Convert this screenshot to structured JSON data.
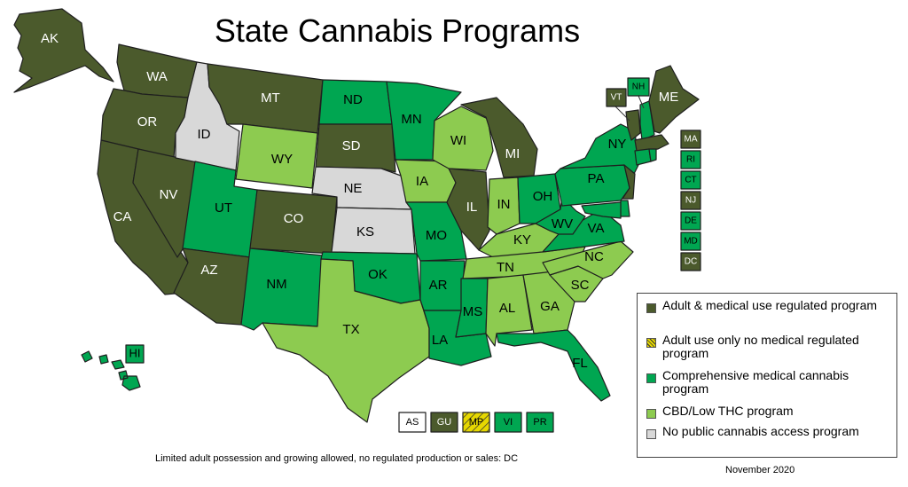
{
  "title": "State Cannabis Programs",
  "colors": {
    "adult_medical": "#4b5a2c",
    "adult_only": "#e6d800",
    "comprehensive_medical": "#00a651",
    "cbd_low_thc": "#8dcb50",
    "no_program": "#d8d8d8"
  },
  "legend": [
    {
      "category": "adult_medical",
      "label": "Adult & medical use regulated program"
    },
    {
      "category": "adult_only",
      "label": "Adult use only no medical regulated program"
    },
    {
      "category": "comprehensive_medical",
      "label": "Comprehensive medical cannabis program"
    },
    {
      "category": "cbd_low_thc",
      "label": "CBD/Low THC program"
    },
    {
      "category": "no_program",
      "label": "No public cannabis access program"
    }
  ],
  "states": {
    "AK": "adult_medical",
    "WA": "adult_medical",
    "OR": "adult_medical",
    "CA": "adult_medical",
    "NV": "adult_medical",
    "ID": "no_program",
    "MT": "adult_medical",
    "WY": "cbd_low_thc",
    "UT": "comprehensive_medical",
    "AZ": "adult_medical",
    "CO": "adult_medical",
    "NM": "comprehensive_medical",
    "ND": "comprehensive_medical",
    "SD": "adult_medical",
    "NE": "no_program",
    "KS": "no_program",
    "OK": "comprehensive_medical",
    "TX": "cbd_low_thc",
    "MN": "comprehensive_medical",
    "IA": "cbd_low_thc",
    "MO": "comprehensive_medical",
    "AR": "comprehensive_medical",
    "LA": "comprehensive_medical",
    "WI": "cbd_low_thc",
    "IL": "adult_medical",
    "MI": "adult_medical",
    "IN": "cbd_low_thc",
    "OH": "comprehensive_medical",
    "KY": "cbd_low_thc",
    "TN": "cbd_low_thc",
    "MS": "comprehensive_medical",
    "AL": "cbd_low_thc",
    "GA": "cbd_low_thc",
    "FL": "comprehensive_medical",
    "SC": "cbd_low_thc",
    "NC": "cbd_low_thc",
    "VA": "comprehensive_medical",
    "WV": "comprehensive_medical",
    "PA": "comprehensive_medical",
    "NY": "comprehensive_medical",
    "VT": "adult_medical",
    "NH": "comprehensive_medical",
    "ME": "adult_medical",
    "HI": "comprehensive_medical",
    "MA": "adult_medical",
    "RI": "comprehensive_medical",
    "CT": "comprehensive_medical",
    "NJ": "adult_medical",
    "DE": "comprehensive_medical",
    "MD": "comprehensive_medical",
    "DC": "adult_medical"
  },
  "east_boxes": [
    "MA",
    "RI",
    "CT",
    "NJ",
    "DE",
    "MD",
    "DC"
  ],
  "territories": [
    {
      "code": "AS",
      "category": "no_program"
    },
    {
      "code": "GU",
      "category": "adult_medical"
    },
    {
      "code": "MP",
      "category": "adult_only"
    },
    {
      "code": "VI",
      "category": "comprehensive_medical"
    },
    {
      "code": "PR",
      "category": "comprehensive_medical"
    }
  ],
  "footnote": "Limited adult possession and growing allowed, no regulated production or sales: DC",
  "date": "November 2020"
}
